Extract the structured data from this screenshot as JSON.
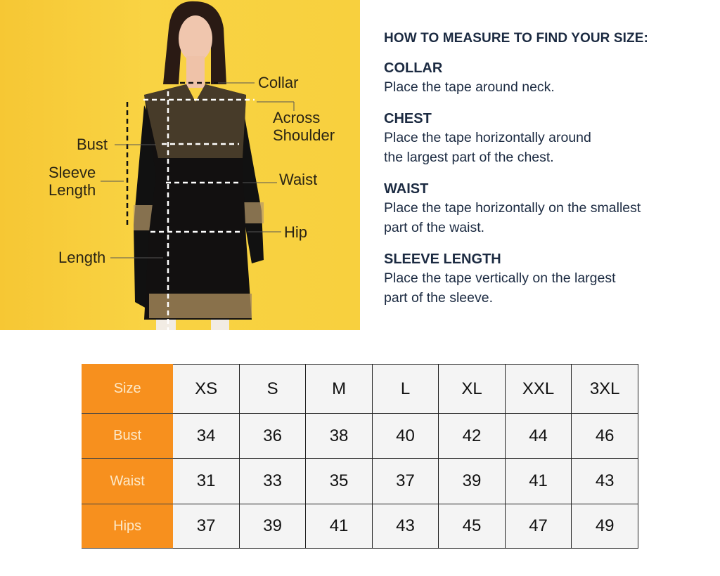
{
  "image": {
    "labels": {
      "collar": "Collar",
      "across_shoulder": [
        "Across",
        "Shoulder"
      ],
      "bust": "Bust",
      "sleeve_length": [
        "Sleeve",
        "Length"
      ],
      "waist": "Waist",
      "hip": "Hip",
      "length": "Length"
    },
    "background_color": "#f8cf3a"
  },
  "guide": {
    "title": "HOW TO MEASURE TO FIND YOUR SIZE:",
    "sections": [
      {
        "heading": "COLLAR",
        "lines": [
          "Place the tape around neck."
        ]
      },
      {
        "heading": "CHEST",
        "lines": [
          "Place the tape horizontally around",
          "the largest part of the chest."
        ]
      },
      {
        "heading": "WAIST",
        "lines": [
          "Place the tape horizontally on the smallest",
          "part of the waist."
        ]
      },
      {
        "heading": "SLEEVE LENGTH",
        "lines": [
          "Place the tape vertically on the largest",
          "part of the sleeve."
        ]
      }
    ]
  },
  "size_table": {
    "header_color": "#f7901e",
    "rows": [
      {
        "label": "Size",
        "values": [
          "XS",
          "S",
          "M",
          "L",
          "XL",
          "XXL",
          "3XL"
        ]
      },
      {
        "label": "Bust",
        "values": [
          "34",
          "36",
          "38",
          "40",
          "42",
          "44",
          "46"
        ]
      },
      {
        "label": "Waist",
        "values": [
          "31",
          "33",
          "35",
          "37",
          "39",
          "41",
          "43"
        ]
      },
      {
        "label": "Hips",
        "values": [
          "37",
          "39",
          "41",
          "43",
          "45",
          "47",
          "49"
        ]
      }
    ]
  }
}
